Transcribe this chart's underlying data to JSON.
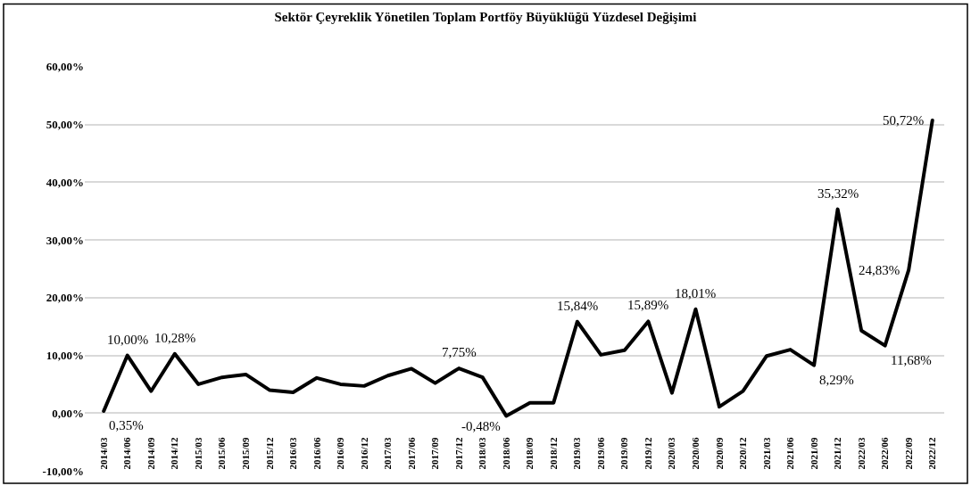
{
  "chart_data": {
    "type": "line",
    "title": "Sektör Çeyreklik Yönetilen Toplam Portföy Büyüklüğü Yüzdesel Değişimi",
    "categories": [
      "2014/03",
      "2014/06",
      "2014/09",
      "2014/12",
      "2015/03",
      "2015/06",
      "2015/09",
      "2015/12",
      "2016/03",
      "2016/06",
      "2016/09",
      "2016/12",
      "2017/03",
      "2017/06",
      "2017/09",
      "2017/12",
      "2018/03",
      "2018/06",
      "2018/09",
      "2018/12",
      "2019/03",
      "2019/06",
      "2019/09",
      "2019/12",
      "2020/03",
      "2020/06",
      "2020/09",
      "2020/12",
      "2021/03",
      "2021/06",
      "2021/09",
      "2021/12",
      "2022/03",
      "2022/06",
      "2022/09",
      "2022/12"
    ],
    "series": [
      {
        "color": "#000000",
        "values": [
          0.35,
          10.0,
          3.8,
          10.28,
          5.0,
          6.2,
          6.7,
          4.0,
          3.6,
          6.1,
          5.0,
          4.7,
          6.5,
          7.7,
          5.2,
          7.75,
          6.2,
          -0.48,
          1.8,
          1.8,
          15.84,
          10.1,
          10.9,
          15.89,
          3.5,
          18.01,
          1.1,
          3.8,
          9.9,
          11.0,
          8.29,
          35.32,
          14.3,
          11.68,
          24.83,
          50.72
        ],
        "value_labels": [
          "0,35%",
          "10,00%",
          null,
          "10,28%",
          null,
          null,
          null,
          null,
          null,
          null,
          null,
          null,
          null,
          null,
          null,
          "7,75%",
          null,
          "-0,48%",
          null,
          null,
          "15,84%",
          null,
          null,
          "15,89%",
          null,
          "18,01%",
          null,
          null,
          null,
          null,
          "8,29%",
          "35,32%",
          null,
          "11,68%",
          "24,83%",
          "50,72%"
        ]
      }
    ],
    "ylim": [
      -10,
      60
    ],
    "yticks": [
      {
        "value": -10,
        "label": "-10,00%"
      },
      {
        "value": 0,
        "label": "0,00%"
      },
      {
        "value": 10,
        "label": "10,00%"
      },
      {
        "value": 20,
        "label": "20,00%"
      },
      {
        "value": 30,
        "label": "30,00%"
      },
      {
        "value": 40,
        "label": "40,00%"
      },
      {
        "value": 50,
        "label": "50,00%"
      },
      {
        "value": 60,
        "label": "60,00%"
      }
    ],
    "grid": "y",
    "legend": false,
    "marker": "none",
    "line_style": "solid"
  }
}
